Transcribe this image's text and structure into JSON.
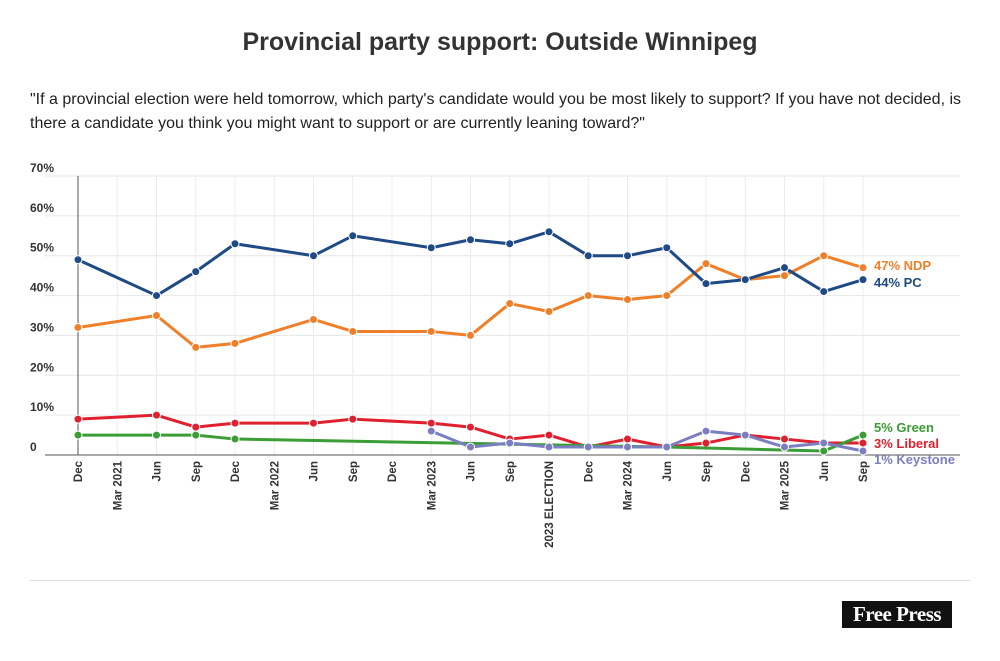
{
  "chart_data": {
    "type": "line",
    "title": "Provincial party support: Outside Winnipeg",
    "subtitle": "\"If a provincial election were held tomorrow, which party's candidate would you be most likely to support? If you have not decided, is there a candidate you think you might want to support or are currently leaning toward?\"",
    "ylim": [
      0,
      70
    ],
    "yticks": [
      "0",
      "10%",
      "20%",
      "30%",
      "40%",
      "50%",
      "60%",
      "70%"
    ],
    "grid": true,
    "categories": [
      "Dec",
      "Mar 2021",
      "Jun",
      "Sep",
      "Dec",
      "Mar 2022",
      "Jun",
      "Sep",
      "Dec",
      "Mar 2023",
      "Jun",
      "Sep",
      "2023 ELECTION",
      "Dec",
      "Mar 2024",
      "Jun",
      "Sep",
      "Dec",
      "Mar 2025",
      "Jun",
      "Sep"
    ],
    "series": [
      {
        "name": "NDP",
        "label": "47% NDP",
        "color": "#f07f2a",
        "values": [
          32,
          null,
          35,
          27,
          28,
          null,
          34,
          31,
          null,
          31,
          30,
          38,
          36,
          40,
          39,
          40,
          48,
          44,
          45,
          50,
          47
        ]
      },
      {
        "name": "PC",
        "label": "44% PC",
        "color": "#1f4a85",
        "values": [
          49,
          null,
          40,
          46,
          53,
          null,
          50,
          55,
          null,
          52,
          54,
          53,
          56,
          50,
          50,
          52,
          43,
          44,
          47,
          41,
          44
        ]
      },
      {
        "name": "Liberal",
        "label": "3% Liberal",
        "color": "#e0202f",
        "values": [
          9,
          null,
          10,
          7,
          8,
          null,
          8,
          9,
          null,
          8,
          7,
          4,
          5,
          2,
          4,
          2,
          3,
          5,
          4,
          3,
          3
        ]
      },
      {
        "name": "Green",
        "label": "5% Green",
        "color": "#3a9d35",
        "values": [
          5,
          null,
          5,
          5,
          4,
          null,
          null,
          null,
          null,
          null,
          null,
          null,
          null,
          null,
          null,
          2,
          null,
          null,
          null,
          1,
          5
        ]
      },
      {
        "name": "Keystone",
        "label": "1% Keystone",
        "color": "#7b7fc2",
        "values": [
          null,
          null,
          null,
          null,
          null,
          null,
          null,
          null,
          null,
          6,
          2,
          3,
          2,
          2,
          2,
          2,
          6,
          5,
          2,
          3,
          1
        ]
      }
    ]
  },
  "logo": "Free Press"
}
